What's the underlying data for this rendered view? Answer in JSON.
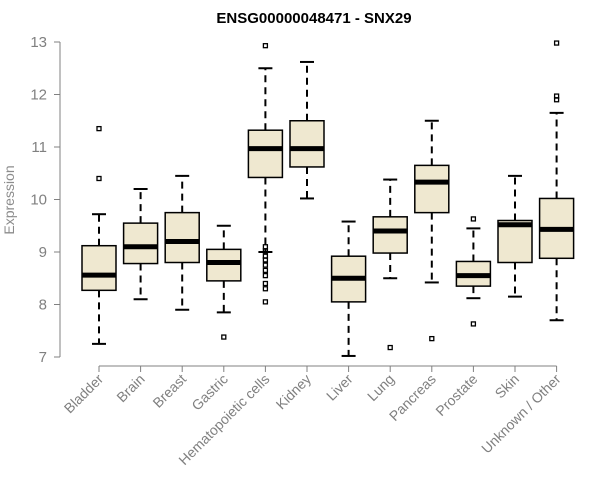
{
  "chart_data": {
    "type": "boxplot",
    "title": "ENSG00000048471 - SNX29",
    "xlabel": "",
    "ylabel": "Expression",
    "ylim": [
      7,
      13
    ],
    "yticks": [
      7,
      8,
      9,
      10,
      11,
      12,
      13
    ],
    "box_fill": "#efe8d0",
    "box_stroke": "#000000",
    "axis_color": "#808080",
    "categories": [
      "Bladder",
      "Brain",
      "Breast",
      "Gastric",
      "Hematopoietic cells",
      "Kidney",
      "Liver",
      "Lung",
      "Pancreas",
      "Prostate",
      "Skin",
      "Unknown / Other"
    ],
    "series": [
      {
        "category": "Bladder",
        "whisker_low": 7.25,
        "q1": 8.27,
        "median": 8.56,
        "q3": 9.12,
        "whisker_high": 9.72,
        "outliers": [
          10.4,
          11.35
        ]
      },
      {
        "category": "Brain",
        "whisker_low": 8.1,
        "q1": 8.78,
        "median": 9.1,
        "q3": 9.55,
        "whisker_high": 10.2,
        "outliers": []
      },
      {
        "category": "Breast",
        "whisker_low": 7.9,
        "q1": 8.8,
        "median": 9.2,
        "q3": 9.75,
        "whisker_high": 10.45,
        "outliers": []
      },
      {
        "category": "Gastric",
        "whisker_low": 7.85,
        "q1": 8.45,
        "median": 8.8,
        "q3": 9.05,
        "whisker_high": 9.5,
        "outliers": [
          7.38
        ]
      },
      {
        "category": "Hematopoietic cells",
        "whisker_low": 9.0,
        "q1": 10.42,
        "median": 10.97,
        "q3": 11.32,
        "whisker_high": 12.5,
        "outliers": [
          12.93,
          9.1,
          9.02,
          8.92,
          8.85,
          8.75,
          8.65,
          8.55,
          8.4,
          8.3,
          8.05
        ]
      },
      {
        "category": "Kidney",
        "whisker_low": 10.02,
        "q1": 10.62,
        "median": 10.97,
        "q3": 11.5,
        "whisker_high": 12.62,
        "outliers": []
      },
      {
        "category": "Liver",
        "whisker_low": 7.02,
        "q1": 8.05,
        "median": 8.5,
        "q3": 8.92,
        "whisker_high": 9.58,
        "outliers": []
      },
      {
        "category": "Lung",
        "whisker_low": 8.5,
        "q1": 8.98,
        "median": 9.4,
        "q3": 9.67,
        "whisker_high": 10.38,
        "outliers": [
          7.18
        ]
      },
      {
        "category": "Pancreas",
        "whisker_low": 8.42,
        "q1": 9.75,
        "median": 10.33,
        "q3": 10.65,
        "whisker_high": 11.5,
        "outliers": [
          7.35
        ]
      },
      {
        "category": "Prostate",
        "whisker_low": 8.12,
        "q1": 8.35,
        "median": 8.55,
        "q3": 8.82,
        "whisker_high": 9.45,
        "outliers": [
          9.63,
          7.63
        ]
      },
      {
        "category": "Skin",
        "whisker_low": 8.15,
        "q1": 8.8,
        "median": 9.52,
        "q3": 9.6,
        "whisker_high": 10.45,
        "outliers": []
      },
      {
        "category": "Unknown / Other",
        "whisker_low": 7.7,
        "q1": 8.88,
        "median": 9.43,
        "q3": 10.02,
        "whisker_high": 11.65,
        "outliers": [
          11.9,
          11.97,
          12.98
        ]
      }
    ]
  }
}
